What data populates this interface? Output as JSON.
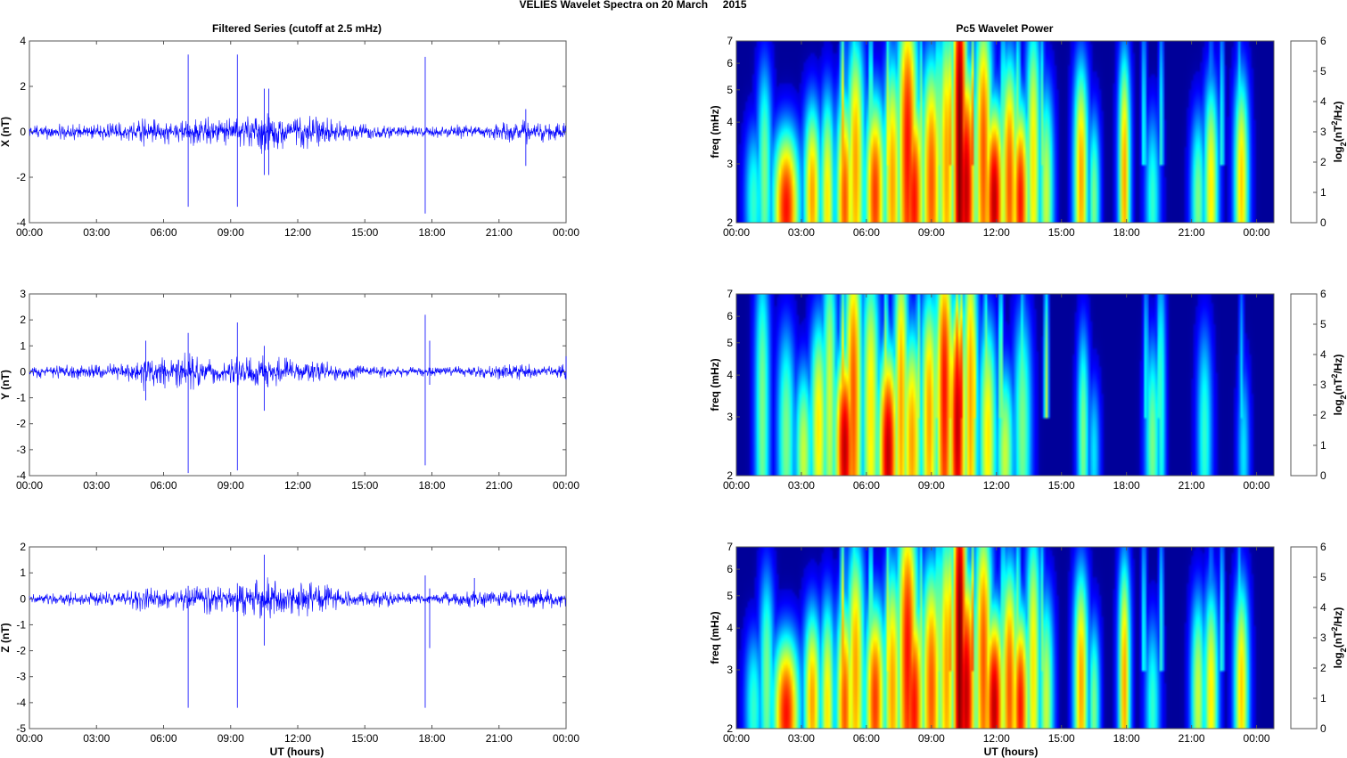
{
  "figure": {
    "suptitle": "VELIES Wavelet Spectra on 20 March     2015",
    "left_title": "Filtered Series (cutoff at 2.5 mHz)",
    "right_title": "Pc5 Wavelet Power",
    "xlabel": "UT (hours)"
  },
  "colors": {
    "series_line": "#0000ff",
    "axes": "#555555",
    "background_power": "#00008f"
  },
  "chart_data": [
    {
      "type": "line",
      "panel": "X",
      "ylabel": "X (nT)",
      "ylim": [
        -4,
        4
      ],
      "yticks": [
        -4,
        -2,
        0,
        2,
        4
      ],
      "xlim": [
        0,
        24
      ],
      "xticklabels": [
        "00:00",
        "03:00",
        "06:00",
        "09:00",
        "12:00",
        "15:00",
        "18:00",
        "21:00",
        "00:00"
      ],
      "amplitude_envelope": [
        [
          0,
          0.35
        ],
        [
          1.5,
          0.4
        ],
        [
          3,
          0.35
        ],
        [
          4.5,
          0.5
        ],
        [
          5.2,
          0.7
        ],
        [
          6,
          0.6
        ],
        [
          7,
          0.6
        ],
        [
          8,
          0.75
        ],
        [
          9,
          0.6
        ],
        [
          10.5,
          1.1
        ],
        [
          11.5,
          0.7
        ],
        [
          12.5,
          0.8
        ],
        [
          14,
          0.5
        ],
        [
          15.5,
          0.4
        ],
        [
          16.5,
          0.3
        ],
        [
          18,
          0.25
        ],
        [
          19,
          0.35
        ],
        [
          20,
          0.3
        ],
        [
          21,
          0.45
        ],
        [
          22.5,
          0.6
        ],
        [
          24,
          0.4
        ]
      ],
      "spikes": [
        [
          7.1,
          3.4,
          -3.3
        ],
        [
          9.3,
          3.4,
          -3.3
        ],
        [
          10.5,
          1.9,
          -1.9
        ],
        [
          10.7,
          1.9,
          -1.9
        ],
        [
          17.7,
          3.3,
          -3.6
        ],
        [
          22.2,
          1.0,
          -1.5
        ]
      ]
    },
    {
      "type": "line",
      "panel": "Y",
      "ylabel": "Y (nT)",
      "ylim": [
        -4,
        3
      ],
      "yticks": [
        -4,
        -3,
        -2,
        -1,
        0,
        1,
        2,
        3
      ],
      "xlim": [
        0,
        24
      ],
      "xticklabels": [
        "00:00",
        "03:00",
        "06:00",
        "09:00",
        "12:00",
        "15:00",
        "18:00",
        "21:00",
        "00:00"
      ],
      "amplitude_envelope": [
        [
          0,
          0.25
        ],
        [
          2,
          0.3
        ],
        [
          4,
          0.35
        ],
        [
          5.2,
          0.8
        ],
        [
          6.5,
          0.65
        ],
        [
          7.2,
          0.8
        ],
        [
          8.5,
          0.55
        ],
        [
          10.5,
          0.7
        ],
        [
          12,
          0.5
        ],
        [
          14,
          0.35
        ],
        [
          16,
          0.25
        ],
        [
          18,
          0.2
        ],
        [
          20,
          0.25
        ],
        [
          22,
          0.35
        ],
        [
          24,
          0.3
        ]
      ],
      "spikes": [
        [
          5.2,
          1.2,
          -1.1
        ],
        [
          7.1,
          1.5,
          -3.9
        ],
        [
          9.3,
          1.9,
          -3.8
        ],
        [
          10.5,
          1.0,
          -1.5
        ],
        [
          17.7,
          2.2,
          -3.6
        ],
        [
          17.9,
          1.2,
          -0.5
        ],
        [
          24,
          0.6,
          -0.3
        ]
      ]
    },
    {
      "type": "line",
      "panel": "Z",
      "ylabel": "Z (nT)",
      "ylim": [
        -5,
        2
      ],
      "yticks": [
        -5,
        -4,
        -3,
        -2,
        -1,
        0,
        1,
        2
      ],
      "xlim": [
        0,
        24
      ],
      "xticklabels": [
        "00:00",
        "03:00",
        "06:00",
        "09:00",
        "12:00",
        "15:00",
        "18:00",
        "21:00",
        "00:00"
      ],
      "amplitude_envelope": [
        [
          0,
          0.2
        ],
        [
          2,
          0.3
        ],
        [
          4,
          0.3
        ],
        [
          5.2,
          0.55
        ],
        [
          6.5,
          0.4
        ],
        [
          8,
          0.7
        ],
        [
          9,
          0.5
        ],
        [
          10.5,
          1.1
        ],
        [
          11.5,
          0.65
        ],
        [
          12.5,
          0.75
        ],
        [
          14,
          0.4
        ],
        [
          16,
          0.35
        ],
        [
          18,
          0.2
        ],
        [
          20,
          0.45
        ],
        [
          21,
          0.3
        ],
        [
          22.5,
          0.45
        ],
        [
          24,
          0.35
        ]
      ],
      "spikes": [
        [
          7.1,
          0.5,
          -4.2
        ],
        [
          9.3,
          0.6,
          -4.2
        ],
        [
          10.5,
          1.7,
          -1.8
        ],
        [
          17.7,
          0.9,
          -4.2
        ],
        [
          17.9,
          0.4,
          -1.9
        ],
        [
          19.9,
          0.8,
          -0.3
        ]
      ]
    },
    {
      "type": "heatmap",
      "panel": "X power",
      "ylabel": "freq (mHz)",
      "yscale": "log",
      "ylim": [
        2,
        7
      ],
      "yticks": [
        2,
        3,
        4,
        5,
        6,
        7
      ],
      "xlim": [
        0,
        24.8
      ],
      "xticklabels": [
        "00:00",
        "03:00",
        "06:00",
        "09:00",
        "12:00",
        "15:00",
        "18:00",
        "21:00",
        "00:00"
      ],
      "colorbar": {
        "label_html": "log<tspan baseline-shift='sub' font-size='9'>2</tspan>(nT<tspan baseline-shift='super' font-size='9'>2</tspan>/Hz)",
        "range": [
          0,
          6
        ],
        "ticks": [
          0,
          1,
          2,
          3,
          4,
          5,
          6
        ]
      },
      "blobs": [
        [
          0.8,
          2.3,
          2.5,
          0.3,
          0.12
        ],
        [
          1.3,
          2.8,
          3.0,
          0.25,
          0.2
        ],
        [
          2.3,
          2.2,
          5.5,
          0.45,
          0.13
        ],
        [
          3.5,
          2.4,
          4.5,
          0.3,
          0.16
        ],
        [
          4.2,
          2.3,
          4.0,
          0.25,
          0.2
        ],
        [
          5.0,
          2.3,
          5.0,
          0.3,
          0.2
        ],
        [
          5.5,
          3.0,
          4.5,
          0.3,
          0.25
        ],
        [
          6.4,
          2.4,
          5.2,
          0.35,
          0.18
        ],
        [
          7.2,
          2.6,
          4.5,
          0.3,
          0.25
        ],
        [
          7.9,
          3.4,
          5.5,
          0.35,
          0.3
        ],
        [
          8.2,
          2.3,
          5.5,
          0.35,
          0.2
        ],
        [
          9.0,
          2.6,
          5.0,
          0.35,
          0.25
        ],
        [
          9.7,
          3.0,
          4.5,
          0.3,
          0.3
        ],
        [
          10.3,
          3.5,
          6.5,
          0.25,
          0.5
        ],
        [
          10.6,
          2.5,
          6.0,
          0.35,
          0.25
        ],
        [
          11.4,
          3.2,
          5.0,
          0.3,
          0.3
        ],
        [
          11.9,
          2.3,
          6.0,
          0.35,
          0.18
        ],
        [
          12.6,
          2.6,
          5.0,
          0.3,
          0.25
        ],
        [
          13.1,
          2.3,
          5.5,
          0.3,
          0.18
        ],
        [
          13.7,
          3.0,
          4.0,
          0.25,
          0.3
        ],
        [
          14.3,
          2.4,
          3.5,
          0.25,
          0.2
        ],
        [
          15.9,
          2.7,
          4.5,
          0.25,
          0.22
        ],
        [
          16.5,
          2.3,
          3.0,
          0.2,
          0.15
        ],
        [
          17.9,
          2.7,
          4.5,
          0.2,
          0.25
        ],
        [
          19.2,
          2.3,
          2.5,
          0.25,
          0.15
        ],
        [
          21.3,
          2.3,
          3.0,
          0.25,
          0.15
        ],
        [
          21.9,
          2.5,
          4.0,
          0.25,
          0.2
        ],
        [
          23.3,
          2.6,
          4.2,
          0.25,
          0.2
        ]
      ],
      "streaks": [
        [
          4.9,
          4.5
        ],
        [
          5.4,
          4.0
        ],
        [
          6.2,
          3.5
        ],
        [
          7.0,
          4.0
        ],
        [
          8.5,
          3.5
        ],
        [
          9.3,
          4.0
        ],
        [
          9.9,
          5.0
        ],
        [
          10.2,
          6.0
        ],
        [
          10.4,
          6.0
        ],
        [
          10.9,
          5.0
        ],
        [
          11.6,
          4.0
        ],
        [
          12.3,
          3.5
        ],
        [
          13.0,
          3.5
        ],
        [
          13.6,
          3.0
        ],
        [
          14.1,
          3.0
        ],
        [
          18.8,
          2.5
        ],
        [
          19.6,
          2.5
        ],
        [
          21.9,
          2.0
        ],
        [
          22.4,
          2.5
        ],
        [
          23.2,
          2.5
        ]
      ]
    },
    {
      "type": "heatmap",
      "panel": "Y power",
      "ylabel": "freq (mHz)",
      "yscale": "log",
      "ylim": [
        2,
        7
      ],
      "yticks": [
        2,
        3,
        4,
        5,
        6,
        7
      ],
      "xlim": [
        0,
        24.8
      ],
      "xticklabels": [
        "00:00",
        "03:00",
        "06:00",
        "09:00",
        "12:00",
        "15:00",
        "18:00",
        "21:00",
        "00:00"
      ],
      "colorbar": {
        "label_html": "log<tspan baseline-shift='sub' font-size='9'>2</tspan>(nT<tspan baseline-shift='super' font-size='9'>2</tspan>/Hz)",
        "range": [
          0,
          6
        ],
        "ticks": [
          0,
          1,
          2,
          3,
          4,
          5,
          6
        ]
      },
      "blobs": [
        [
          1.2,
          3.2,
          3.0,
          0.25,
          0.3
        ],
        [
          2.3,
          2.6,
          3.0,
          0.3,
          0.2
        ],
        [
          3.1,
          2.3,
          3.5,
          0.3,
          0.15
        ],
        [
          3.8,
          2.8,
          4.0,
          0.3,
          0.2
        ],
        [
          4.3,
          3.5,
          3.5,
          0.25,
          0.3
        ],
        [
          5.0,
          2.4,
          6.0,
          0.35,
          0.18
        ],
        [
          5.4,
          3.4,
          5.0,
          0.3,
          0.35
        ],
        [
          6.2,
          3.2,
          4.0,
          0.3,
          0.3
        ],
        [
          7.0,
          2.3,
          6.0,
          0.35,
          0.2
        ],
        [
          7.6,
          3.3,
          4.5,
          0.25,
          0.35
        ],
        [
          8.1,
          2.5,
          4.5,
          0.35,
          0.22
        ],
        [
          8.9,
          3.0,
          4.5,
          0.3,
          0.25
        ],
        [
          9.6,
          3.6,
          5.5,
          0.3,
          0.3
        ],
        [
          10.2,
          2.8,
          6.0,
          0.3,
          0.25
        ],
        [
          10.8,
          3.5,
          4.5,
          0.25,
          0.35
        ],
        [
          11.6,
          2.6,
          4.0,
          0.3,
          0.22
        ],
        [
          12.4,
          2.3,
          3.5,
          0.3,
          0.15
        ],
        [
          13.2,
          2.8,
          3.0,
          0.3,
          0.22
        ],
        [
          16.0,
          2.6,
          3.0,
          0.2,
          0.2
        ],
        [
          16.5,
          2.3,
          2.0,
          0.2,
          0.12
        ],
        [
          19.2,
          2.5,
          3.0,
          0.25,
          0.18
        ],
        [
          19.6,
          3.5,
          2.5,
          0.15,
          0.25
        ],
        [
          21.6,
          2.6,
          2.5,
          0.25,
          0.2
        ],
        [
          23.4,
          2.3,
          2.0,
          0.2,
          0.15
        ]
      ],
      "streaks": [
        [
          4.9,
          4.5
        ],
        [
          5.3,
          4.0
        ],
        [
          6.2,
          4.0
        ],
        [
          6.9,
          4.0
        ],
        [
          7.5,
          3.5
        ],
        [
          8.4,
          3.5
        ],
        [
          9.2,
          4.0
        ],
        [
          9.9,
          4.5
        ],
        [
          10.2,
          6.0
        ],
        [
          10.4,
          5.5
        ],
        [
          11.0,
          4.0
        ],
        [
          11.5,
          3.5
        ],
        [
          12.2,
          3.5
        ],
        [
          13.2,
          3.0
        ],
        [
          14.3,
          3.5
        ],
        [
          18.9,
          2.5
        ],
        [
          19.5,
          2.5
        ],
        [
          23.3,
          2.0
        ]
      ]
    },
    {
      "type": "heatmap",
      "panel": "Z power",
      "ylabel": "freq (mHz)",
      "yscale": "log",
      "ylim": [
        2,
        7
      ],
      "yticks": [
        2,
        3,
        4,
        5,
        6,
        7
      ],
      "xlim": [
        0,
        24.8
      ],
      "xticklabels": [
        "00:00",
        "03:00",
        "06:00",
        "09:00",
        "12:00",
        "15:00",
        "18:00",
        "21:00",
        "00:00"
      ],
      "colorbar": {
        "label_html": "log<tspan baseline-shift='sub' font-size='9'>2</tspan>(nT<tspan baseline-shift='super' font-size='9'>2</tspan>/Hz)",
        "range": [
          0,
          6
        ],
        "ticks": [
          0,
          1,
          2,
          3,
          4,
          5,
          6
        ]
      },
      "blobs": [
        [
          0.8,
          2.3,
          2.5,
          0.3,
          0.12
        ],
        [
          1.4,
          2.8,
          3.0,
          0.25,
          0.2
        ],
        [
          2.3,
          2.2,
          5.5,
          0.45,
          0.13
        ],
        [
          3.5,
          2.4,
          4.5,
          0.3,
          0.16
        ],
        [
          4.2,
          2.3,
          4.0,
          0.25,
          0.2
        ],
        [
          5.0,
          2.3,
          5.0,
          0.3,
          0.2
        ],
        [
          5.5,
          3.0,
          4.5,
          0.3,
          0.25
        ],
        [
          6.4,
          2.4,
          5.2,
          0.35,
          0.18
        ],
        [
          7.2,
          2.6,
          4.5,
          0.3,
          0.25
        ],
        [
          7.9,
          3.4,
          5.5,
          0.35,
          0.3
        ],
        [
          8.2,
          2.3,
          5.5,
          0.35,
          0.2
        ],
        [
          9.0,
          2.6,
          5.0,
          0.35,
          0.25
        ],
        [
          9.7,
          3.0,
          4.5,
          0.3,
          0.3
        ],
        [
          10.3,
          3.5,
          6.5,
          0.25,
          0.5
        ],
        [
          10.6,
          2.5,
          6.0,
          0.35,
          0.25
        ],
        [
          11.4,
          3.2,
          5.0,
          0.3,
          0.3
        ],
        [
          11.9,
          2.3,
          6.0,
          0.35,
          0.18
        ],
        [
          12.6,
          2.6,
          5.0,
          0.3,
          0.25
        ],
        [
          13.1,
          2.3,
          5.5,
          0.3,
          0.18
        ],
        [
          13.7,
          3.0,
          4.0,
          0.25,
          0.3
        ],
        [
          14.3,
          2.4,
          3.5,
          0.25,
          0.2
        ],
        [
          15.9,
          2.7,
          4.5,
          0.25,
          0.22
        ],
        [
          16.5,
          2.3,
          3.0,
          0.2,
          0.15
        ],
        [
          17.9,
          2.7,
          4.5,
          0.2,
          0.25
        ],
        [
          19.2,
          2.3,
          2.5,
          0.25,
          0.15
        ],
        [
          21.3,
          2.5,
          3.5,
          0.25,
          0.18
        ],
        [
          21.9,
          2.5,
          4.0,
          0.25,
          0.2
        ],
        [
          23.3,
          2.6,
          4.2,
          0.25,
          0.2
        ]
      ],
      "streaks": [
        [
          4.9,
          4.5
        ],
        [
          5.4,
          4.0
        ],
        [
          6.2,
          3.5
        ],
        [
          7.0,
          4.0
        ],
        [
          8.5,
          3.5
        ],
        [
          9.3,
          4.0
        ],
        [
          9.9,
          5.0
        ],
        [
          10.2,
          6.0
        ],
        [
          10.4,
          6.0
        ],
        [
          10.9,
          5.0
        ],
        [
          11.6,
          4.0
        ],
        [
          12.3,
          3.5
        ],
        [
          13.0,
          3.5
        ],
        [
          13.6,
          3.0
        ],
        [
          14.1,
          3.0
        ],
        [
          18.8,
          2.5
        ],
        [
          19.6,
          2.5
        ],
        [
          21.9,
          2.0
        ],
        [
          22.4,
          2.5
        ],
        [
          23.2,
          2.5
        ]
      ]
    }
  ]
}
